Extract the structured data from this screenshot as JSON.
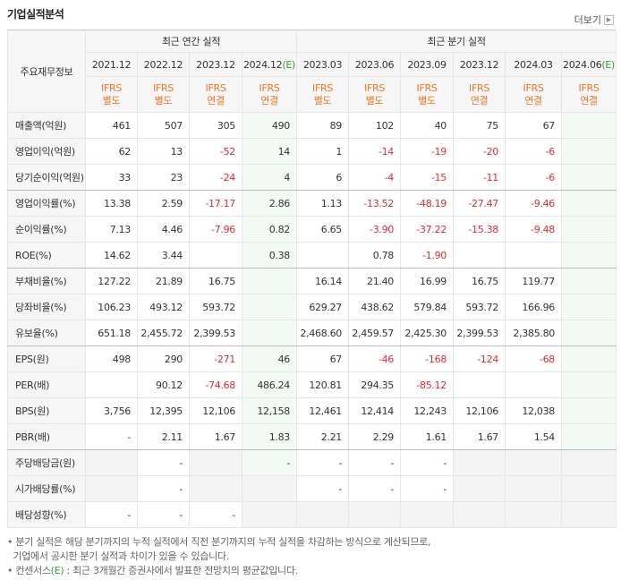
{
  "header": {
    "title": "기업실적분석",
    "more": "더보기"
  },
  "table": {
    "corner": "주요재무정보",
    "groups": [
      {
        "label": "최근 연간 실적",
        "span": 4
      },
      {
        "label": "최근 분기 실적",
        "span": 6
      }
    ],
    "columns": [
      {
        "date": "2021.12",
        "ifrs": "IFRS",
        "basis": "별도"
      },
      {
        "date": "2022.12",
        "ifrs": "IFRS",
        "basis": "별도"
      },
      {
        "date": "2023.12",
        "ifrs": "IFRS",
        "basis": "연결"
      },
      {
        "date": "2024.12",
        "est": "(E)",
        "ifrs": "IFRS",
        "basis": "연결"
      },
      {
        "date": "2023.03",
        "ifrs": "IFRS",
        "basis": "별도"
      },
      {
        "date": "2023.06",
        "ifrs": "IFRS",
        "basis": "별도"
      },
      {
        "date": "2023.09",
        "ifrs": "IFRS",
        "basis": "별도"
      },
      {
        "date": "2023.12",
        "ifrs": "IFRS",
        "basis": "연결"
      },
      {
        "date": "2024.03",
        "ifrs": "IFRS",
        "basis": "연결"
      },
      {
        "date": "2024.06",
        "est": "(E)",
        "ifrs": "IFRS",
        "basis": "연결"
      }
    ],
    "rows": [
      {
        "label": "매출액(억원)",
        "values": [
          "461",
          "507",
          "305",
          "490",
          "89",
          "102",
          "40",
          "75",
          "67",
          null
        ]
      },
      {
        "label": "영업이익(억원)",
        "values": [
          "62",
          "13",
          "-52",
          "14",
          "1",
          "-14",
          "-19",
          "-20",
          "-6",
          null
        ]
      },
      {
        "label": "당기순이익(억원)",
        "values": [
          "33",
          "23",
          "-24",
          "4",
          "6",
          "-4",
          "-15",
          "-11",
          "-6",
          null
        ]
      },
      {
        "label": "영업이익률(%)",
        "values": [
          "13.38",
          "2.59",
          "-17.17",
          "2.86",
          "1.13",
          "-13.52",
          "-48.19",
          "-27.47",
          "-9.46",
          null
        ]
      },
      {
        "label": "순이익률(%)",
        "values": [
          "7.13",
          "4.46",
          "-7.96",
          "0.82",
          "6.65",
          "-3.90",
          "-37.22",
          "-15.38",
          "-9.48",
          null
        ]
      },
      {
        "label": "ROE(%)",
        "values": [
          "14.62",
          "3.44",
          null,
          "0.38",
          null,
          "0.78",
          "-1.90",
          null,
          null,
          null
        ]
      },
      {
        "label": "부채비율(%)",
        "values": [
          "127.22",
          "21.89",
          "16.75",
          null,
          "16.14",
          "21.40",
          "16.99",
          "16.75",
          "119.77",
          null
        ]
      },
      {
        "label": "당좌비율(%)",
        "values": [
          "106.23",
          "493.12",
          "593.72",
          null,
          "629.27",
          "438.62",
          "579.84",
          "593.72",
          "166.96",
          null
        ]
      },
      {
        "label": "유보율(%)",
        "values": [
          "651.18",
          "2,455.72",
          "2,399.53",
          null,
          "2,468.60",
          "2,459.57",
          "2,425.30",
          "2,399.53",
          "2,385.80",
          null
        ]
      },
      {
        "label": "EPS(원)",
        "values": [
          "498",
          "290",
          "-271",
          "46",
          "67",
          "-46",
          "-168",
          "-124",
          "-68",
          null
        ]
      },
      {
        "label": "PER(배)",
        "values": [
          null,
          "90.12",
          "-74.68",
          "486.24",
          "120.81",
          "294.35",
          "-85.12",
          null,
          null,
          null
        ]
      },
      {
        "label": "BPS(원)",
        "values": [
          "3,756",
          "12,395",
          "12,106",
          "12,158",
          "12,461",
          "12,414",
          "12,243",
          "12,106",
          "12,038",
          null
        ]
      },
      {
        "label": "PBR(배)",
        "values": [
          "-",
          "2.11",
          "1.67",
          "1.83",
          "2.21",
          "2.29",
          "1.61",
          "1.67",
          "1.54",
          null
        ]
      },
      {
        "label": "주당배당금(원)",
        "values": [
          null,
          "-",
          null,
          "-",
          "-",
          "-",
          "-",
          null,
          null,
          null
        ]
      },
      {
        "label": "시가배당률(%)",
        "values": [
          null,
          "-",
          null,
          null,
          "-",
          "-",
          "-",
          null,
          null,
          null
        ]
      },
      {
        "label": "배당성향(%)",
        "values": [
          "-",
          "-",
          "-",
          null,
          null,
          null,
          null,
          null,
          null,
          null
        ]
      }
    ]
  },
  "notes": [
    {
      "parts": [
        "• 분기 실적은 해당 분기까지의 누적 실적에서 직전 분기까지의 누적 실적을 차감하는 방식으로 계산되므로,"
      ]
    },
    {
      "parts": [
        "  기업에서 공시한 분기 실적과 차이가 있을 수 있습니다."
      ]
    },
    {
      "parts": [
        "• 컨센서스",
        "(E)",
        " : 최근 3개월간 증권사에서 발표한 전망치의 평균값입니다."
      ]
    }
  ]
}
